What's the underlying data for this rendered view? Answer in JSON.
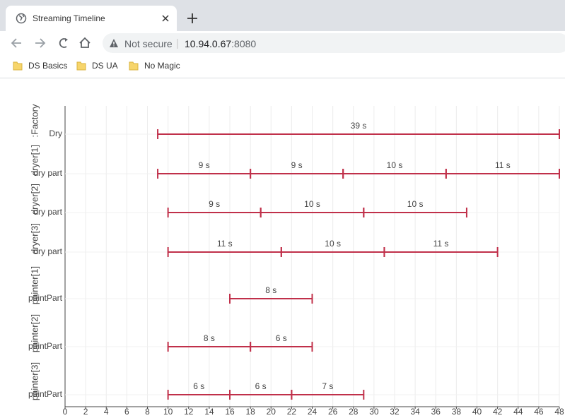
{
  "browser": {
    "tab_title": "Streaming Timeline",
    "security": "Not secure",
    "url_host": "10.94.0.67",
    "url_port": ":8080",
    "bookmarks": [
      "DS Basics",
      "DS UA",
      "No Magic"
    ]
  },
  "chart_data": {
    "type": "timeline",
    "color": "#c0304a",
    "grid": true,
    "xlim": [
      0,
      48
    ],
    "xticks": [
      0,
      2,
      4,
      6,
      8,
      10,
      12,
      14,
      16,
      18,
      20,
      22,
      24,
      26,
      28,
      30,
      32,
      34,
      36,
      38,
      40,
      42,
      44,
      46,
      48
    ],
    "rows": [
      {
        "group": ":Factory",
        "label": "Dry",
        "segments": [
          {
            "start": 9,
            "end": 48,
            "value": 39,
            "value_label": "39 s"
          }
        ]
      },
      {
        "group": "dryer[1]",
        "label": "dry part",
        "segments": [
          {
            "start": 9,
            "end": 18,
            "value": 9,
            "value_label": "9 s"
          },
          {
            "start": 18,
            "end": 27,
            "value": 9,
            "value_label": "9 s"
          },
          {
            "start": 27,
            "end": 37,
            "value": 10,
            "value_label": "10 s"
          },
          {
            "start": 37,
            "end": 48,
            "value": 11,
            "value_label": "11 s"
          }
        ]
      },
      {
        "group": "dryer[2]",
        "label": "dry part",
        "segments": [
          {
            "start": 10,
            "end": 19,
            "value": 9,
            "value_label": "9 s"
          },
          {
            "start": 19,
            "end": 29,
            "value": 10,
            "value_label": "10 s"
          },
          {
            "start": 29,
            "end": 39,
            "value": 10,
            "value_label": "10 s"
          }
        ]
      },
      {
        "group": "dryer[3]",
        "label": "dry part",
        "segments": [
          {
            "start": 10,
            "end": 21,
            "value": 11,
            "value_label": "11 s"
          },
          {
            "start": 21,
            "end": 31,
            "value": 10,
            "value_label": "10 s"
          },
          {
            "start": 31,
            "end": 42,
            "value": 11,
            "value_label": "11 s"
          }
        ]
      },
      {
        "group": "painter[1]",
        "label": "paintPart",
        "segments": [
          {
            "start": 16,
            "end": 24,
            "value": 8,
            "value_label": "8 s"
          }
        ]
      },
      {
        "group": "painter[2]",
        "label": "paintPart",
        "segments": [
          {
            "start": 10,
            "end": 18,
            "value": 8,
            "value_label": "8 s"
          },
          {
            "start": 18,
            "end": 24,
            "value": 6,
            "value_label": "6 s"
          }
        ]
      },
      {
        "group": "painter[3]",
        "label": "paintPart",
        "segments": [
          {
            "start": 10,
            "end": 16,
            "value": 6,
            "value_label": "6 s"
          },
          {
            "start": 16,
            "end": 22,
            "value": 6,
            "value_label": "6 s"
          },
          {
            "start": 22,
            "end": 29,
            "value": 7,
            "value_label": "7 s"
          }
        ]
      }
    ]
  }
}
